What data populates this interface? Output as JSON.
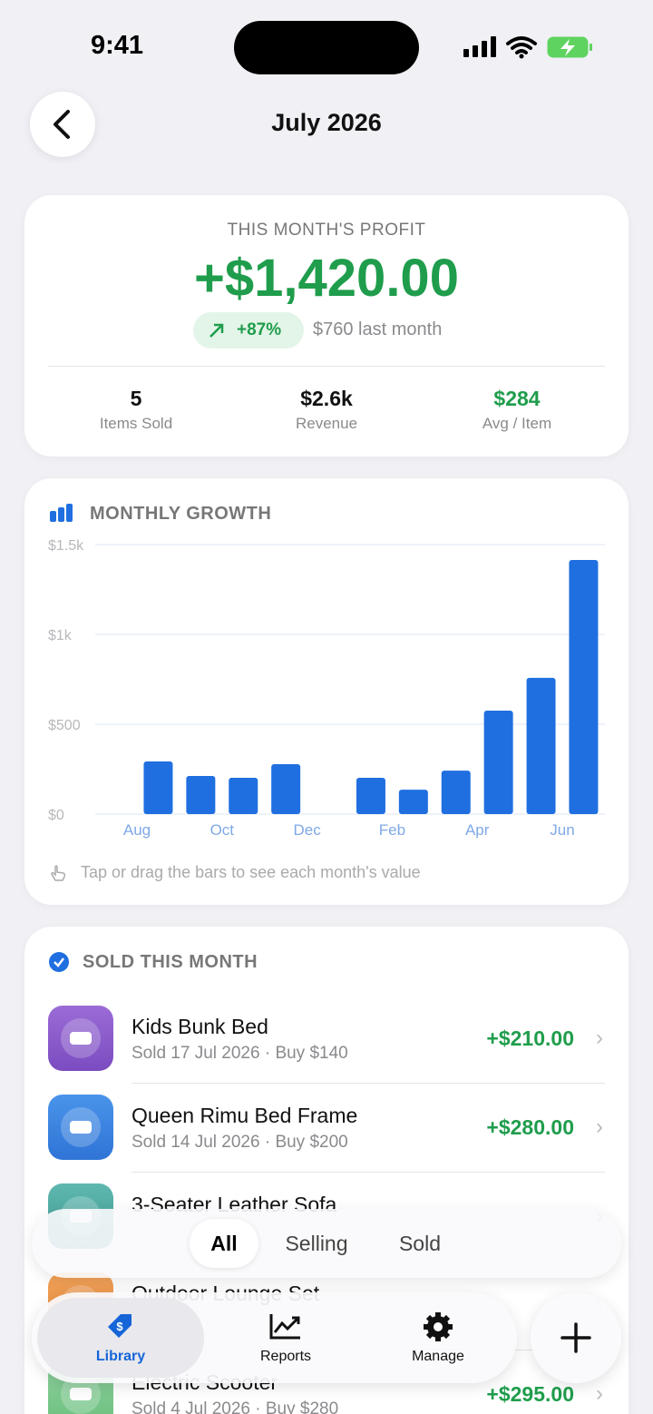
{
  "status_bar": {
    "time": "9:41"
  },
  "header": {
    "title": "July 2026"
  },
  "profit_card": {
    "label": "THIS MONTH'S PROFIT",
    "amount": "+$1,420.00",
    "change": "+87%",
    "comparison": "$760 last month",
    "stats": [
      {
        "value": "5",
        "label": "Items Sold"
      },
      {
        "value": "$2.6k",
        "label": "Revenue"
      },
      {
        "value": "$284",
        "label": "Avg / Item"
      }
    ]
  },
  "growth_card": {
    "title": "MONTHLY GROWTH",
    "hint": "Tap or drag the bars to see each month's value"
  },
  "chart_data": {
    "type": "bar",
    "categories": [
      "Aug",
      null,
      "Oct",
      null,
      "Dec",
      null,
      "Feb",
      null,
      "Apr",
      null,
      "Jun"
    ],
    "values": [
      293,
      212,
      202,
      278,
      0,
      202,
      136,
      242,
      576,
      758,
      1414
    ],
    "color": "#1f6fe0",
    "ylim": [
      0,
      1500
    ],
    "yticks": [
      {
        "value": 0,
        "label": "$0"
      },
      {
        "value": 500,
        "label": "$500"
      },
      {
        "value": 1000,
        "label": "$1k"
      },
      {
        "value": 1500,
        "label": "$1.5k"
      }
    ],
    "grid": true
  },
  "sold_list": {
    "title": "SOLD THIS MONTH",
    "items": [
      {
        "name": "Kids Bunk Bed",
        "detail": "Sold 17 Jul 2026 · Buy $140",
        "profit": "+$210.00"
      },
      {
        "name": "Queen Rimu Bed Frame",
        "detail": "Sold 14 Jul 2026 · Buy $200",
        "profit": "+$280.00"
      },
      {
        "name": "3-Seater Leather Sofa"
      },
      {
        "name": "Outdoor Lounge Set"
      },
      {
        "name": "Electric Scooter",
        "detail": "Sold 4 Jul 2026 · Buy $280",
        "profit": "+$295.00"
      }
    ]
  },
  "filter": {
    "options": [
      "All",
      "Selling",
      "Sold"
    ],
    "selected": 0
  },
  "tab_bar": {
    "tabs": [
      "Library",
      "Reports",
      "Manage"
    ],
    "selected": 0
  }
}
